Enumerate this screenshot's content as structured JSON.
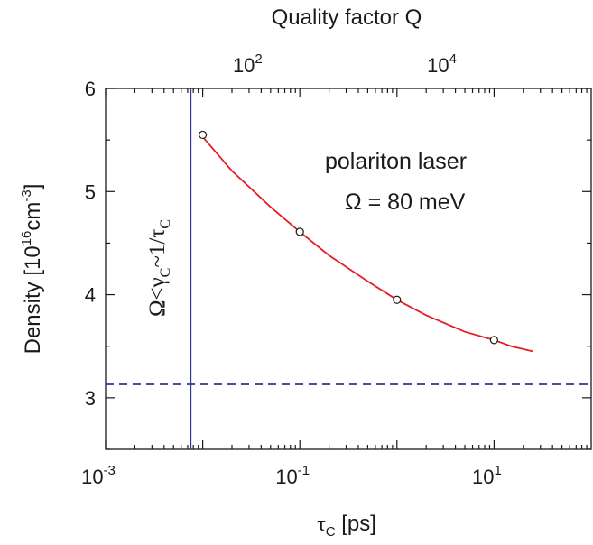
{
  "chart_data": {
    "type": "scatter",
    "x_axis": {
      "title_prefix": "τ",
      "title_sub": "C",
      "title_suffix": " [ps]",
      "scale": "log",
      "xlim": [
        0.001,
        100
      ],
      "ticks": [
        {
          "value": 0.001,
          "base": "10",
          "exp": "-3"
        },
        {
          "value": 0.1,
          "base": "10",
          "exp": "-1"
        },
        {
          "value": 10,
          "base": "10",
          "exp": "1"
        }
      ]
    },
    "top_axis": {
      "title": "Quality factor Q",
      "ticks": [
        {
          "x_value": 0.0316,
          "base": "10",
          "exp": "2"
        },
        {
          "x_value": 3.16,
          "base": "10",
          "exp": "4"
        }
      ]
    },
    "y_axis": {
      "title_a": "Density [10",
      "title_exp1": "16",
      "title_b": "cm",
      "title_exp2": "-3",
      "title_c": "]",
      "ylim": [
        2.5,
        6
      ],
      "ticks": [
        {
          "value": 3,
          "label": "3"
        },
        {
          "value": 4,
          "label": "4"
        },
        {
          "value": 5,
          "label": "5"
        },
        {
          "value": 6,
          "label": "6"
        }
      ]
    },
    "series": [
      {
        "type": "scatter",
        "marker": "open-circle",
        "color": "#1a1a1a",
        "points": [
          {
            "x": 0.01,
            "y": 5.55
          },
          {
            "x": 0.1,
            "y": 4.61
          },
          {
            "x": 1,
            "y": 3.95
          },
          {
            "x": 10,
            "y": 3.56
          }
        ]
      },
      {
        "type": "line",
        "color": "#e31e24",
        "points": [
          {
            "x": 0.01,
            "y": 5.53
          },
          {
            "x": 0.02,
            "y": 5.2
          },
          {
            "x": 0.05,
            "y": 4.85
          },
          {
            "x": 0.1,
            "y": 4.61
          },
          {
            "x": 0.2,
            "y": 4.38
          },
          {
            "x": 0.5,
            "y": 4.13
          },
          {
            "x": 1,
            "y": 3.95
          },
          {
            "x": 2,
            "y": 3.8
          },
          {
            "x": 5,
            "y": 3.64
          },
          {
            "x": 10,
            "y": 3.56
          },
          {
            "x": 15,
            "y": 3.5
          },
          {
            "x": 25,
            "y": 3.45
          }
        ]
      }
    ],
    "vertical_line": {
      "x": 0.0075,
      "color": "#2e3592"
    },
    "horizontal_line": {
      "y": 3.13,
      "color": "#2e3592",
      "style": "dashed"
    },
    "annotations": {
      "polariton": {
        "text": "polariton laser",
        "color": "#e31e24"
      },
      "omega": {
        "text": "Ω = 80 meV",
        "color": "#1a1a1a"
      },
      "vertical_label": {
        "omega": "Ω<γ",
        "c1": "C",
        "mid": "~1/τ",
        "c2": "C",
        "color": "#2e3592"
      }
    }
  }
}
